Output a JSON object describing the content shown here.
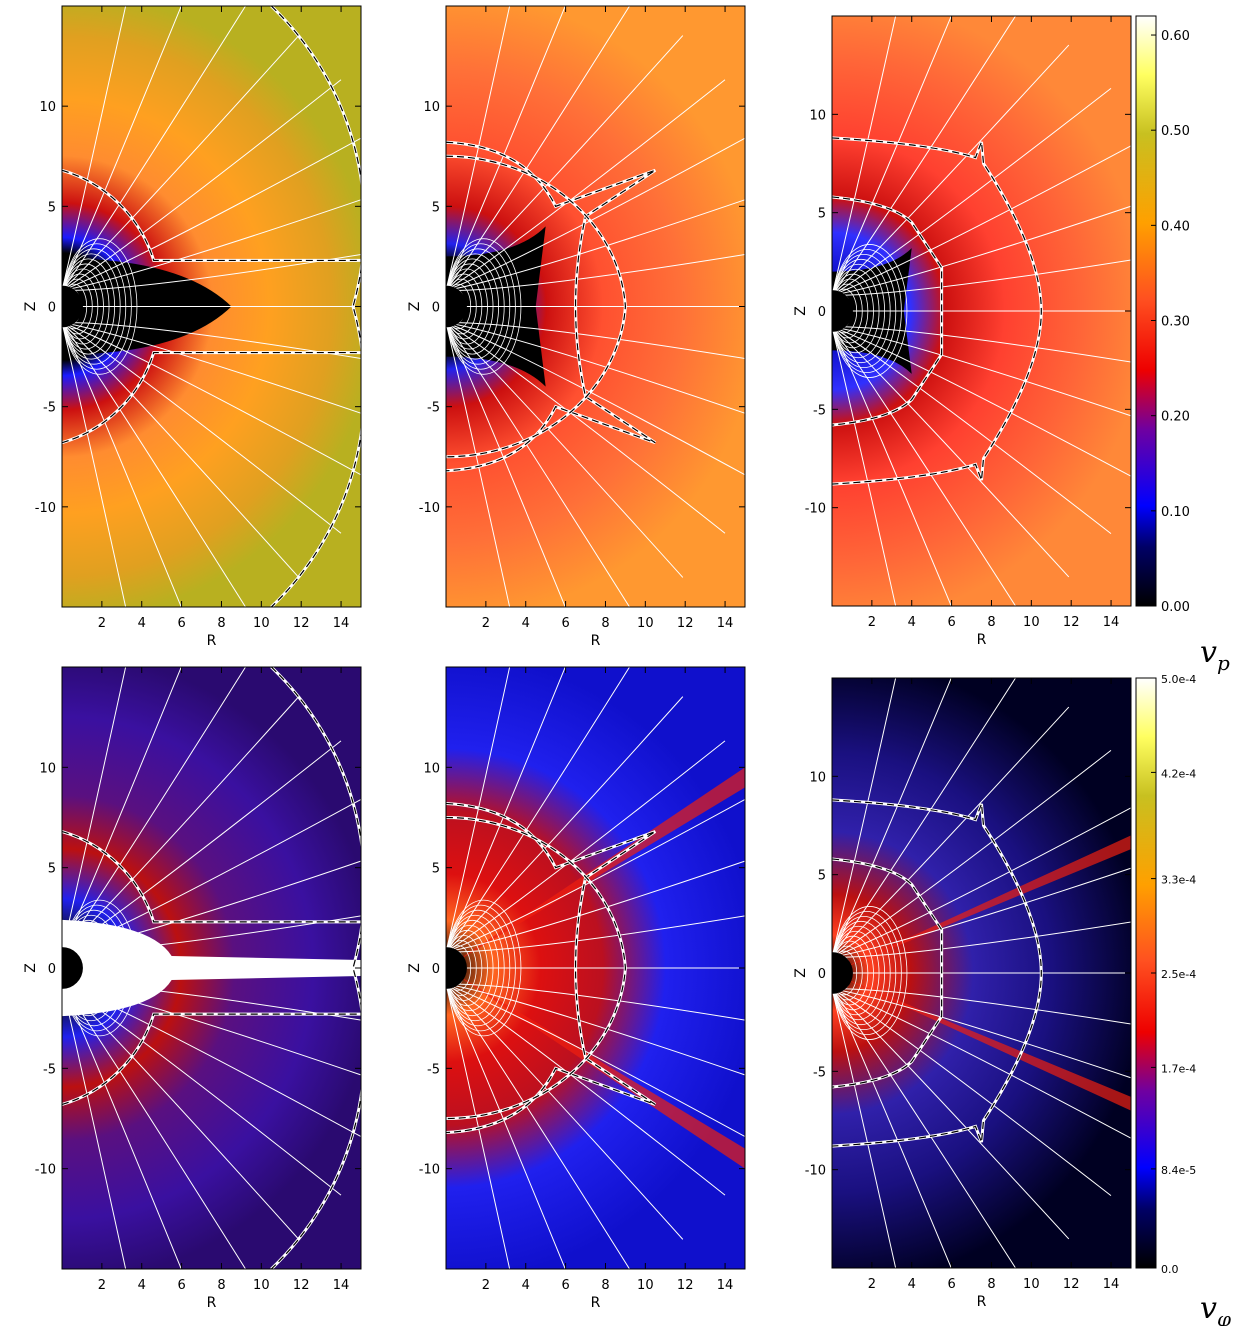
{
  "chart_data": [
    {
      "type": "heatmap",
      "row": "top",
      "panel": 1,
      "quantity": "v_p",
      "xlabel": "R",
      "ylabel": "Z",
      "xlim": [
        0,
        15
      ],
      "ylim": [
        -15,
        15
      ],
      "xticks": [
        "2",
        "4",
        "6",
        "8",
        "10",
        "12",
        "14"
      ],
      "yticks": [
        "10",
        "5",
        "0",
        "-5",
        "-10"
      ],
      "palette": "top-left"
    },
    {
      "type": "heatmap",
      "row": "top",
      "panel": 2,
      "quantity": "v_p",
      "xlabel": "R",
      "ylabel": "Z",
      "xlim": [
        0,
        15
      ],
      "ylim": [
        -15,
        15
      ],
      "xticks": [
        "2",
        "4",
        "6",
        "8",
        "10",
        "12",
        "14"
      ],
      "yticks": [
        "10",
        "5",
        "0",
        "-5",
        "-10"
      ],
      "palette": "top-mid"
    },
    {
      "type": "heatmap",
      "row": "top",
      "panel": 3,
      "quantity": "v_p",
      "xlabel": "R",
      "ylabel": "Z",
      "xlim": [
        0,
        15
      ],
      "ylim": [
        -15,
        15
      ],
      "xticks": [
        "2",
        "4",
        "6",
        "8",
        "10",
        "12",
        "14"
      ],
      "yticks": [
        "10",
        "5",
        "0",
        "-5",
        "-10"
      ],
      "palette": "top-right",
      "colorbar": {
        "min": 0.0,
        "max": 0.62,
        "ticks": [
          "0.60",
          "0.50",
          "0.40",
          "0.30",
          "0.20",
          "0.10",
          "0.00"
        ],
        "tick_values": [
          0.6,
          0.5,
          0.4,
          0.3,
          0.2,
          0.1,
          0.0
        ]
      }
    },
    {
      "type": "heatmap",
      "row": "bottom",
      "panel": 1,
      "quantity": "v_phi",
      "xlabel": "R",
      "ylabel": "Z",
      "xlim": [
        0,
        15
      ],
      "ylim": [
        -15,
        15
      ],
      "xticks": [
        "2",
        "4",
        "6",
        "8",
        "10",
        "12",
        "14"
      ],
      "yticks": [
        "10",
        "5",
        "0",
        "-5",
        "-10"
      ],
      "palette": "bot-left"
    },
    {
      "type": "heatmap",
      "row": "bottom",
      "panel": 2,
      "quantity": "v_phi",
      "xlabel": "R",
      "ylabel": "Z",
      "xlim": [
        0,
        15
      ],
      "ylim": [
        -15,
        15
      ],
      "xticks": [
        "2",
        "4",
        "6",
        "8",
        "10",
        "12",
        "14"
      ],
      "yticks": [
        "10",
        "5",
        "0",
        "-5",
        "-10"
      ],
      "palette": "bot-mid"
    },
    {
      "type": "heatmap",
      "row": "bottom",
      "panel": 3,
      "quantity": "v_phi",
      "xlabel": "R",
      "ylabel": "Z",
      "xlim": [
        0,
        15
      ],
      "ylim": [
        -15,
        15
      ],
      "xticks": [
        "2",
        "4",
        "6",
        "8",
        "10",
        "12",
        "14"
      ],
      "yticks": [
        "10",
        "5",
        "0",
        "-5",
        "-10"
      ],
      "palette": "bot-right",
      "colorbar": {
        "min": 0.0,
        "max": 0.0005,
        "ticks": [
          "5.0e-4",
          "4.2e-4",
          "3.3e-4",
          "2.5e-4",
          "1.7e-4",
          "8.4e-5",
          "0.0"
        ],
        "tick_values": [
          0.0005,
          0.00042,
          0.00033,
          0.00025,
          0.00017,
          8.4e-05,
          0.0
        ]
      }
    }
  ],
  "row_labels": {
    "top": "v",
    "top_sub": "p",
    "bottom": "v",
    "bottom_sub": "φ"
  },
  "colors": {
    "overlay_lines": "#ffffff",
    "contour_dash": "#000000"
  }
}
